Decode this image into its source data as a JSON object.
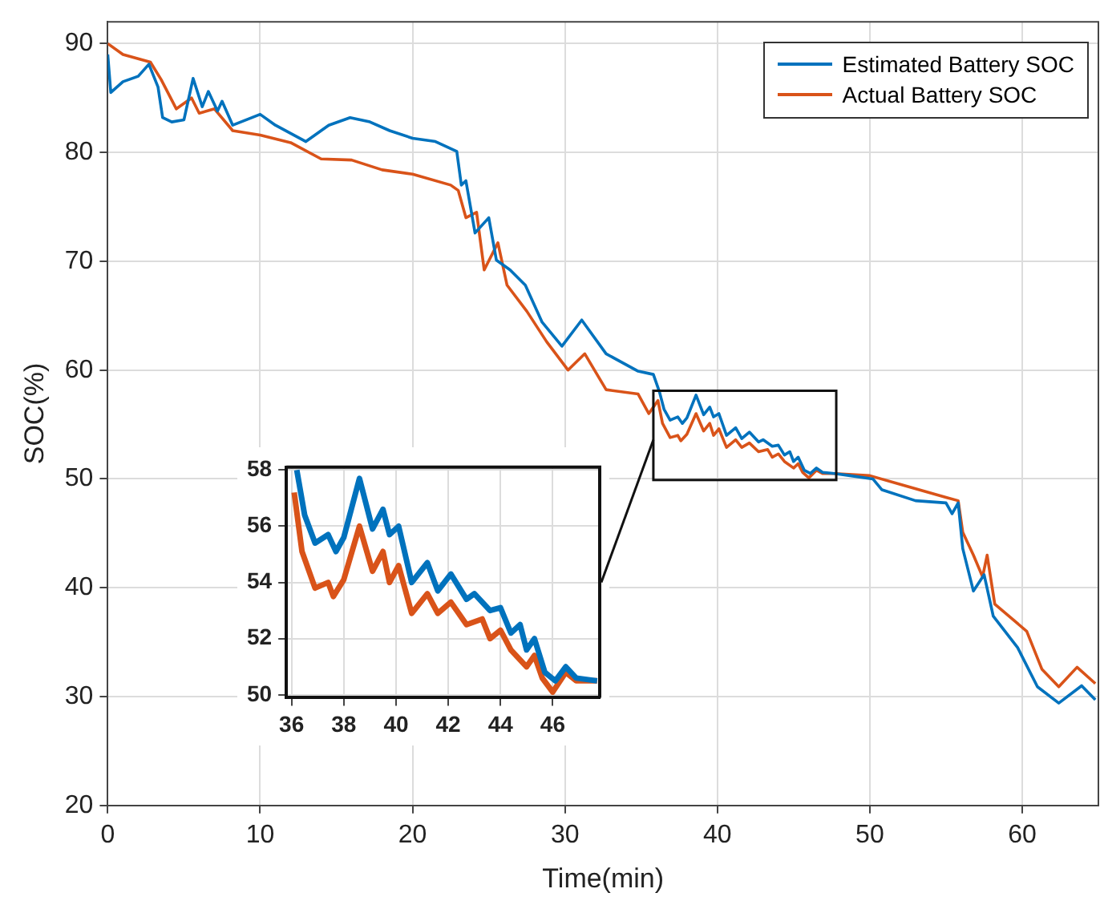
{
  "chart_data": [
    {
      "type": "line",
      "xlabel": "Time(min)",
      "ylabel": "SOC(%)",
      "xlim": [
        0,
        65
      ],
      "ylim": [
        20,
        92
      ],
      "xticks": [
        0,
        10,
        20,
        30,
        40,
        50,
        60
      ],
      "yticks": [
        20,
        30,
        40,
        50,
        60,
        70,
        80,
        90
      ],
      "grid": true,
      "legend": "top right",
      "line_style": "solid",
      "marker": "none",
      "series": [
        {
          "name": "Estimated Battery SOC",
          "color": "#0072bd",
          "x": [
            0,
            0.2,
            1,
            2,
            2.7,
            3.3,
            3.6,
            4.2,
            5,
            5.6,
            6.2,
            6.6,
            7.2,
            7.5,
            8.2,
            10,
            11,
            13,
            14.5,
            15.9,
            17.2,
            18.5,
            20,
            21.5,
            22.9,
            23.2,
            23.5,
            24.1,
            25,
            25.5,
            26.4,
            27.4,
            28.5,
            29.8,
            31.1,
            32.7,
            34.8,
            35.8,
            36.2,
            36.5,
            36.9,
            37.4,
            37.7,
            38,
            38.6,
            39.1,
            39.5,
            39.75,
            40.1,
            40.6,
            41.2,
            41.6,
            42.1,
            42.7,
            43,
            43.6,
            44,
            44.4,
            44.75,
            45,
            45.3,
            45.7,
            46.1,
            46.5,
            46.9,
            47.7,
            48.7,
            50.2,
            50.8,
            53,
            55,
            55.4,
            55.8,
            56.1,
            56.8,
            57.5,
            58.1,
            59.7,
            61,
            62.4,
            63.9,
            64.8
          ],
          "values": [
            89,
            85.5,
            86.5,
            87,
            88.1,
            86,
            83.2,
            82.8,
            83,
            86.8,
            84.2,
            85.6,
            83.8,
            84.7,
            82.5,
            83.5,
            82.5,
            81,
            82.5,
            83.2,
            82.8,
            82,
            81.3,
            81,
            80.1,
            77,
            77.4,
            72.6,
            74,
            70.1,
            69.2,
            67.8,
            64.4,
            62.2,
            64.6,
            61.5,
            59.9,
            59.6,
            58,
            56.4,
            55.4,
            55.7,
            55.1,
            55.6,
            57.7,
            55.9,
            56.6,
            55.7,
            56,
            54,
            54.7,
            53.7,
            54.3,
            53.4,
            53.6,
            53,
            53.1,
            52.2,
            52.5,
            51.6,
            52,
            50.8,
            50.5,
            51,
            50.6,
            50.5,
            50.3,
            50,
            49,
            48,
            47.8,
            46.8,
            47.8,
            43.6,
            39.7,
            41.2,
            37.4,
            34.5,
            30.9,
            29.4,
            31,
            29.7
          ]
        },
        {
          "name": "Actual Battery SOC",
          "color": "#d95319",
          "x": [
            0,
            1,
            2.8,
            3.5,
            4.5,
            5.5,
            6,
            7,
            8.2,
            10,
            12,
            14,
            16,
            18,
            20,
            22.5,
            23,
            23.5,
            24.2,
            24.7,
            25.6,
            26.2,
            27.5,
            28.8,
            30.2,
            31.3,
            32.7,
            34.8,
            35.5,
            36.1,
            36.4,
            36.9,
            37.4,
            37.6,
            38,
            38.6,
            39.1,
            39.5,
            39.75,
            40.1,
            40.6,
            41.2,
            41.6,
            42.1,
            42.7,
            43.3,
            43.6,
            44,
            44.4,
            45,
            45.3,
            45.6,
            46,
            46.5,
            46.9,
            47.7,
            50,
            52,
            55,
            55.8,
            56.1,
            56.8,
            57.4,
            57.7,
            58.2,
            60.3,
            61.3,
            62.4,
            63.6,
            64.8
          ],
          "values": [
            90,
            89,
            88.3,
            86.7,
            84,
            85,
            83.6,
            84,
            82,
            81.6,
            80.9,
            79.4,
            79.3,
            78.4,
            78,
            77,
            76.5,
            74,
            74.5,
            69.2,
            71.7,
            67.8,
            65.4,
            62.6,
            60,
            61.5,
            58.2,
            57.8,
            56,
            57.2,
            55.1,
            53.8,
            54,
            53.5,
            54.1,
            56,
            54.4,
            55.1,
            54,
            54.6,
            52.9,
            53.6,
            52.9,
            53.3,
            52.5,
            52.7,
            52,
            52.3,
            51.6,
            51,
            51.4,
            50.6,
            50.1,
            50.8,
            50.5,
            50.5,
            50.3,
            49.5,
            48.3,
            48,
            45.1,
            43,
            41,
            43,
            38.5,
            36,
            32.5,
            30.9,
            32.7,
            31.2
          ]
        }
      ]
    },
    {
      "type": "line",
      "xlim": [
        35.8,
        47.8
      ],
      "ylim": [
        49.9,
        58.1
      ],
      "xticks": [
        36,
        38,
        40,
        42,
        44,
        46
      ],
      "yticks": [
        50,
        52,
        54,
        56,
        58
      ],
      "grid": true,
      "line_style": "solid",
      "marker": "none",
      "series": [
        {
          "color": "#0072bd",
          "x": [
            36.2,
            36.5,
            36.9,
            37.4,
            37.7,
            38,
            38.6,
            39.1,
            39.5,
            39.75,
            40.1,
            40.6,
            41.2,
            41.6,
            42.1,
            42.7,
            43,
            43.6,
            44,
            44.4,
            44.75,
            45,
            45.3,
            45.7,
            46.1,
            46.5,
            46.9,
            47.7
          ],
          "values": [
            58,
            56.4,
            55.4,
            55.7,
            55.1,
            55.6,
            57.7,
            55.9,
            56.6,
            55.7,
            56,
            54,
            54.7,
            53.7,
            54.3,
            53.4,
            53.6,
            53,
            53.1,
            52.2,
            52.5,
            51.6,
            52,
            50.8,
            50.5,
            51,
            50.6,
            50.5
          ]
        },
        {
          "color": "#d95319",
          "x": [
            36.1,
            36.4,
            36.9,
            37.4,
            37.6,
            38,
            38.6,
            39.1,
            39.5,
            39.75,
            40.1,
            40.6,
            41.2,
            41.6,
            42.1,
            42.7,
            43.3,
            43.6,
            44,
            44.4,
            45,
            45.3,
            45.6,
            46,
            46.5,
            46.9,
            47.7
          ],
          "values": [
            57.2,
            55.1,
            53.8,
            54,
            53.5,
            54.1,
            56,
            54.4,
            55.1,
            54,
            54.6,
            52.9,
            53.6,
            52.9,
            53.3,
            52.5,
            52.7,
            52,
            52.3,
            51.6,
            51,
            51.4,
            50.6,
            50.1,
            50.8,
            50.5,
            50.5
          ]
        }
      ]
    }
  ]
}
